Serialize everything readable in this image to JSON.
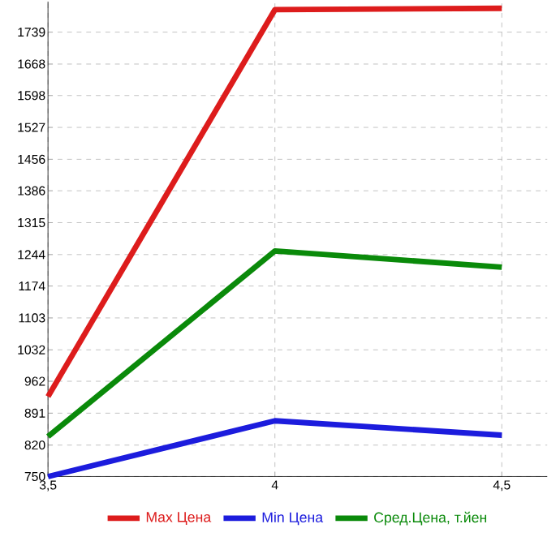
{
  "chart_data": {
    "type": "line",
    "x": [
      3.5,
      4,
      4.5
    ],
    "series": [
      {
        "name": "Max Цена",
        "color": "#dd1c1c",
        "values": [
          928,
          1789,
          1792
        ]
      },
      {
        "name": "Min Цена",
        "color": "#1c1cdd",
        "values": [
          750,
          874,
          842
        ]
      },
      {
        "name": "Сред.Цена, т.йен",
        "color": "#0a8a0a",
        "values": [
          839,
          1252,
          1216
        ]
      }
    ],
    "xlim": [
      3.5,
      4.6
    ],
    "ylim": [
      750,
      1807
    ],
    "xticks": [
      {
        "value": 3.5,
        "label": "3,5"
      },
      4,
      {
        "value": 4.5,
        "label": "4,5"
      }
    ],
    "yticks": [
      750,
      820,
      891,
      962,
      1032,
      1103,
      1174,
      1244,
      1315,
      1386,
      1456,
      1527,
      1598,
      1668,
      1739
    ],
    "grid": true,
    "legend": "bottom",
    "marker": "none",
    "line_style": "solid"
  }
}
